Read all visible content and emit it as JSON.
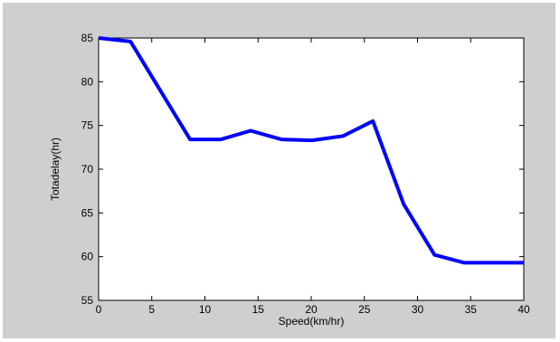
{
  "chart_data": {
    "type": "line",
    "title": "",
    "xlabel": "Speed(km/hr)",
    "ylabel": "Totadelay(hr)",
    "xlim": [
      0,
      40
    ],
    "ylim": [
      55,
      85
    ],
    "xticks": [
      0,
      5,
      10,
      15,
      20,
      25,
      30,
      35,
      40
    ],
    "yticks": [
      55,
      60,
      65,
      70,
      75,
      80,
      85
    ],
    "grid": false,
    "series": [
      {
        "color": "#0000ff",
        "x": [
          0,
          3,
          8.6,
          11.5,
          14.3,
          17.2,
          20.1,
          23,
          25.8,
          28.7,
          31.6,
          34.4,
          37.3,
          40
        ],
        "y": [
          85,
          84.6,
          73.4,
          73.4,
          74.4,
          73.4,
          73.3,
          73.8,
          75.5,
          66,
          60.2,
          59.3,
          59.3,
          59.3
        ]
      }
    ]
  },
  "colors": {
    "figure_background": "#cfcfcf",
    "plot_background": "#ffffff",
    "line": "#0000ff"
  }
}
